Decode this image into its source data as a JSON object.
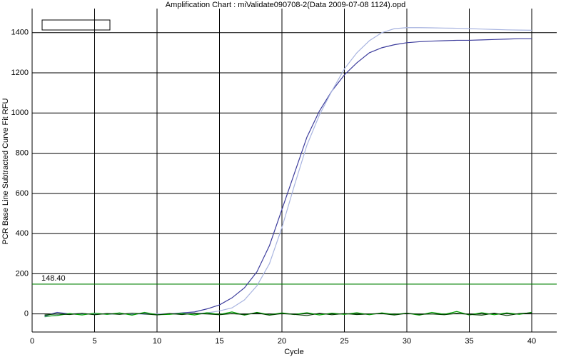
{
  "chart_data": {
    "type": "line",
    "title": "Amplification Chart : miValidate090708-2(Data 2009-07-08 1124).opd",
    "x_label": "Cycle",
    "y_label": "PCR Base Line Subtracted Curve Fit RFU",
    "x": [
      1,
      2,
      3,
      4,
      5,
      6,
      7,
      8,
      9,
      10,
      11,
      12,
      13,
      14,
      15,
      16,
      17,
      18,
      19,
      20,
      21,
      22,
      23,
      24,
      25,
      26,
      27,
      28,
      29,
      30,
      31,
      32,
      33,
      34,
      35,
      36,
      37,
      38,
      39,
      40
    ],
    "series": [
      {
        "color": "#3c3c9c",
        "values": [
          -10,
          8,
          0,
          2,
          -2,
          1,
          0,
          -1,
          2,
          -3,
          0,
          5,
          10,
          25,
          45,
          80,
          130,
          210,
          340,
          520,
          700,
          880,
          1010,
          1110,
          1190,
          1250,
          1300,
          1325,
          1340,
          1350,
          1355,
          1358,
          1360,
          1362,
          1362,
          1364,
          1366,
          1368,
          1370,
          1370
        ]
      },
      {
        "color": "#a8b4e0",
        "values": [
          -15,
          -5,
          0,
          -3,
          2,
          -2,
          0,
          1,
          -2,
          0,
          1,
          0,
          2,
          5,
          15,
          30,
          70,
          140,
          250,
          430,
          640,
          840,
          990,
          1110,
          1220,
          1300,
          1360,
          1400,
          1420,
          1425,
          1425,
          1424,
          1423,
          1422,
          1420,
          1418,
          1416,
          1414,
          1413,
          1412
        ]
      },
      {
        "color": "#00a000",
        "values": [
          -12,
          -8,
          2,
          -5,
          4,
          -2,
          5,
          -6,
          8,
          -4,
          -2,
          3,
          -5,
          6,
          -3,
          10,
          -6,
          8,
          -4,
          5,
          -3,
          6,
          -5,
          4,
          -2,
          6,
          -4,
          5,
          -3,
          4,
          -6,
          8,
          -2,
          12,
          -5,
          6,
          -4,
          5,
          -2,
          8
        ]
      },
      {
        "color": "#004000",
        "values": [
          -5,
          0,
          -3,
          3,
          -4,
          2,
          -2,
          4,
          0,
          -5,
          2,
          -3,
          3,
          0,
          -4,
          2,
          -3,
          5,
          -6,
          2,
          -2,
          -8,
          3,
          -4,
          2,
          -3,
          0,
          2,
          -5,
          3,
          -2,
          0,
          -4,
          3,
          -2,
          -6,
          4,
          -8,
          2,
          5
        ]
      }
    ],
    "threshold": {
      "value": 148.4,
      "label": "148.40",
      "color": "#008000"
    },
    "xlim": [
      0,
      42
    ],
    "ylim": [
      -90,
      1520
    ],
    "xticks": [
      0,
      5,
      10,
      15,
      20,
      25,
      30,
      35,
      40
    ],
    "yticks": [
      0,
      200,
      400,
      600,
      800,
      1000,
      1200,
      1400
    ],
    "grid": true
  }
}
